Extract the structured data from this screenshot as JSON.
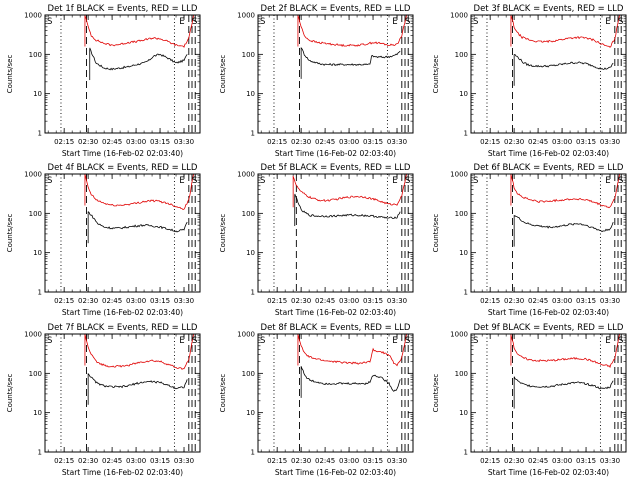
{
  "figure": {
    "x_axis_label": "Start Time (16-Feb-02 02:03:40)",
    "y_axis_label": "Counts/sec"
  },
  "colors": {
    "events": "#000000",
    "lld": "#e00000",
    "axes": "#000000",
    "background": "#ffffff"
  },
  "markers": {
    "left": "S",
    "mid": "E",
    "right": "S"
  },
  "chart_data": [
    {
      "type": "line",
      "id": "det1",
      "title": "Det 1f BLACK = Events, RED = LLD",
      "x_ticks": [
        "02:15",
        "02:30",
        "02:45",
        "03:00",
        "03:15",
        "03:30"
      ],
      "y_ticks": [
        "1",
        "10",
        "100",
        "1000"
      ],
      "yscale": "log",
      "ylim": [
        1,
        1000
      ],
      "series": [
        {
          "name": "Events",
          "color": "#000000",
          "x": [
            "02:31",
            "02:35",
            "02:40",
            "02:45",
            "02:50",
            "02:55",
            "03:00",
            "03:05",
            "03:08",
            "03:11",
            "03:15",
            "03:20",
            "03:25",
            "03:30",
            "03:32"
          ],
          "y": [
            140,
            60,
            45,
            42,
            45,
            48,
            55,
            60,
            70,
            90,
            100,
            80,
            60,
            70,
            100
          ]
        },
        {
          "name": "LLD",
          "color": "#e00000",
          "x": [
            "02:28",
            "02:30",
            "02:32",
            "02:35",
            "02:40",
            "02:45",
            "02:50",
            "02:55",
            "03:00",
            "03:05",
            "03:10",
            "03:15",
            "03:20",
            "03:25",
            "03:30",
            "03:33",
            "03:36"
          ],
          "y": [
            1000,
            500,
            300,
            230,
            190,
            170,
            180,
            200,
            210,
            230,
            260,
            250,
            210,
            170,
            160,
            250,
            1000
          ]
        }
      ],
      "dashed_lines": [
        "02:29",
        "03:33",
        "03:35",
        "03:37"
      ],
      "dotted_lines": [
        "02:13",
        "03:24"
      ]
    },
    {
      "type": "line",
      "id": "det2",
      "title": "Det 2f BLACK = Events, RED = LLD",
      "x_ticks": [
        "02:15",
        "02:30",
        "02:45",
        "03:00",
        "03:15",
        "03:30"
      ],
      "y_ticks": [
        "1",
        "10",
        "100",
        "1000"
      ],
      "yscale": "log",
      "ylim": [
        1,
        1000
      ],
      "series": [
        {
          "name": "Events",
          "color": "#000000",
          "x": [
            "02:30",
            "02:32",
            "02:35",
            "02:40",
            "02:45",
            "02:50",
            "02:55",
            "03:00",
            "03:05",
            "03:10",
            "03:13",
            "03:14",
            "03:18",
            "03:22",
            "03:27",
            "03:30",
            "03:32"
          ],
          "y": [
            150,
            100,
            70,
            60,
            55,
            55,
            55,
            55,
            55,
            55,
            55,
            90,
            85,
            85,
            90,
            100,
            120
          ]
        },
        {
          "name": "LLD",
          "color": "#e00000",
          "x": [
            "02:28",
            "02:30",
            "02:32",
            "02:35",
            "02:40",
            "02:45",
            "02:50",
            "02:55",
            "03:00",
            "03:05",
            "03:10",
            "03:15",
            "03:20",
            "03:25",
            "03:30",
            "03:33",
            "03:36"
          ],
          "y": [
            1000,
            500,
            300,
            230,
            200,
            190,
            180,
            170,
            170,
            170,
            180,
            200,
            190,
            170,
            180,
            300,
            1000
          ]
        }
      ],
      "dashed_lines": [
        "02:29",
        "03:33",
        "03:35",
        "03:37"
      ],
      "dotted_lines": [
        "02:13",
        "03:24"
      ]
    },
    {
      "type": "line",
      "id": "det3",
      "title": "Det 3f BLACK = Events, RED = LLD",
      "x_ticks": [
        "02:15",
        "02:30",
        "02:45",
        "03:00",
        "03:15",
        "03:30"
      ],
      "y_ticks": [
        "1",
        "10",
        "100",
        "1000"
      ],
      "yscale": "log",
      "ylim": [
        1,
        1000
      ],
      "series": [
        {
          "name": "Events",
          "color": "#000000",
          "x": [
            "02:30",
            "02:33",
            "02:36",
            "02:40",
            "02:45",
            "02:50",
            "02:55",
            "03:00",
            "03:05",
            "03:10",
            "03:15",
            "03:20",
            "03:25",
            "03:30",
            "03:32"
          ],
          "y": [
            100,
            80,
            60,
            52,
            50,
            50,
            52,
            56,
            60,
            62,
            58,
            50,
            42,
            45,
            60
          ]
        },
        {
          "name": "LLD",
          "color": "#e00000",
          "x": [
            "02:28",
            "02:30",
            "02:32",
            "02:35",
            "02:40",
            "02:45",
            "02:50",
            "02:55",
            "03:00",
            "03:05",
            "03:10",
            "03:15",
            "03:20",
            "03:25",
            "03:30",
            "03:33",
            "03:36"
          ],
          "y": [
            1000,
            500,
            350,
            270,
            230,
            210,
            210,
            220,
            240,
            260,
            270,
            260,
            230,
            180,
            150,
            250,
            1000
          ]
        }
      ],
      "dashed_lines": [
        "02:29",
        "03:33",
        "03:35",
        "03:37"
      ],
      "dotted_lines": [
        "02:13",
        "03:24"
      ]
    },
    {
      "type": "line",
      "id": "det4",
      "title": "Det 4f BLACK = Events, RED = LLD",
      "x_ticks": [
        "02:15",
        "02:30",
        "02:45",
        "03:00",
        "03:15",
        "03:30"
      ],
      "y_ticks": [
        "1",
        "10",
        "100",
        "1000"
      ],
      "yscale": "log",
      "ylim": [
        1,
        1000
      ],
      "series": [
        {
          "name": "Events",
          "color": "#000000",
          "x": [
            "02:30",
            "02:33",
            "02:36",
            "02:40",
            "02:45",
            "02:50",
            "02:55",
            "03:00",
            "03:05",
            "03:10",
            "03:15",
            "03:20",
            "03:25",
            "03:30",
            "03:32"
          ],
          "y": [
            110,
            80,
            55,
            45,
            42,
            42,
            45,
            48,
            50,
            48,
            45,
            40,
            35,
            38,
            60
          ]
        },
        {
          "name": "LLD",
          "color": "#e00000",
          "x": [
            "02:28",
            "02:30",
            "02:32",
            "02:35",
            "02:40",
            "02:45",
            "02:50",
            "02:55",
            "03:00",
            "03:05",
            "03:10",
            "03:15",
            "03:20",
            "03:25",
            "03:30",
            "03:33",
            "03:36"
          ],
          "y": [
            1000,
            450,
            300,
            220,
            180,
            160,
            160,
            170,
            180,
            200,
            210,
            200,
            180,
            150,
            130,
            220,
            1000
          ]
        }
      ],
      "dashed_lines": [
        "02:29",
        "03:33",
        "03:35",
        "03:37"
      ],
      "dotted_lines": [
        "02:13",
        "03:24"
      ]
    },
    {
      "type": "line",
      "id": "det5",
      "title": "Det 5f BLACK = Events, RED = LLD",
      "x_ticks": [
        "02:15",
        "02:30",
        "02:45",
        "03:00",
        "03:15",
        "03:30"
      ],
      "y_ticks": [
        "1",
        "10",
        "100",
        "1000"
      ],
      "yscale": "log",
      "ylim": [
        1,
        1000
      ],
      "series": [
        {
          "name": "Events",
          "color": "#000000",
          "x": [
            "02:26",
            "02:28",
            "02:30",
            "02:35",
            "02:40",
            "02:45",
            "02:50",
            "02:55",
            "03:00",
            "03:05",
            "03:10",
            "03:15",
            "03:20",
            "03:25",
            "03:30",
            "03:32"
          ],
          "y": [
            300,
            200,
            120,
            90,
            85,
            85,
            85,
            88,
            90,
            90,
            88,
            85,
            80,
            75,
            80,
            110
          ]
        },
        {
          "name": "LLD",
          "color": "#e00000",
          "x": [
            "02:25",
            "02:27",
            "02:30",
            "02:35",
            "02:40",
            "02:45",
            "02:50",
            "02:55",
            "03:00",
            "03:05",
            "03:10",
            "03:15",
            "03:20",
            "03:25",
            "03:30",
            "03:33",
            "03:36"
          ],
          "y": [
            900,
            500,
            350,
            260,
            220,
            210,
            220,
            240,
            260,
            270,
            260,
            230,
            200,
            170,
            170,
            280,
            1000
          ]
        }
      ],
      "dashed_lines": [
        "02:27",
        "03:33",
        "03:35",
        "03:37"
      ],
      "dotted_lines": [
        "02:13",
        "03:24"
      ]
    },
    {
      "type": "line",
      "id": "det6",
      "title": "Det 6f BLACK = Events, RED = LLD",
      "x_ticks": [
        "02:15",
        "02:30",
        "02:45",
        "03:00",
        "03:15",
        "03:30"
      ],
      "y_ticks": [
        "1",
        "10",
        "100",
        "1000"
      ],
      "yscale": "log",
      "ylim": [
        1,
        1000
      ],
      "series": [
        {
          "name": "Events",
          "color": "#000000",
          "x": [
            "02:30",
            "02:33",
            "02:36",
            "02:40",
            "02:45",
            "02:50",
            "02:55",
            "03:00",
            "03:05",
            "03:10",
            "03:15",
            "03:20",
            "03:25",
            "03:30",
            "03:32"
          ],
          "y": [
            90,
            75,
            60,
            52,
            48,
            45,
            45,
            48,
            52,
            55,
            50,
            42,
            35,
            40,
            60
          ]
        },
        {
          "name": "LLD",
          "color": "#e00000",
          "x": [
            "02:28",
            "02:30",
            "02:32",
            "02:35",
            "02:40",
            "02:45",
            "02:50",
            "02:55",
            "03:00",
            "03:05",
            "03:10",
            "03:15",
            "03:20",
            "03:25",
            "03:30",
            "03:33",
            "03:36"
          ],
          "y": [
            1000,
            450,
            330,
            260,
            220,
            200,
            200,
            210,
            220,
            230,
            230,
            220,
            190,
            160,
            140,
            240,
            1000
          ]
        }
      ],
      "dashed_lines": [
        "02:29",
        "03:33",
        "03:35",
        "03:37"
      ],
      "dotted_lines": [
        "02:13",
        "03:24"
      ]
    },
    {
      "type": "line",
      "id": "det7",
      "title": "Det 7f BLACK = Events, RED = LLD",
      "x_ticks": [
        "02:15",
        "02:30",
        "02:45",
        "03:00",
        "03:15",
        "03:30"
      ],
      "y_ticks": [
        "1",
        "10",
        "100",
        "1000"
      ],
      "yscale": "log",
      "ylim": [
        1,
        1000
      ],
      "series": [
        {
          "name": "Events",
          "color": "#000000",
          "x": [
            "02:30",
            "02:33",
            "02:36",
            "02:40",
            "02:45",
            "02:50",
            "02:55",
            "03:00",
            "03:05",
            "03:10",
            "03:15",
            "03:20",
            "03:25",
            "03:30",
            "03:32"
          ],
          "y": [
            100,
            70,
            55,
            48,
            45,
            45,
            48,
            55,
            60,
            62,
            58,
            50,
            42,
            45,
            70
          ]
        },
        {
          "name": "LLD",
          "color": "#e00000",
          "x": [
            "02:28",
            "02:30",
            "02:32",
            "02:35",
            "02:40",
            "02:45",
            "02:50",
            "02:55",
            "03:00",
            "03:05",
            "03:10",
            "03:15",
            "03:20",
            "03:25",
            "03:30",
            "03:33",
            "03:36"
          ],
          "y": [
            1000,
            450,
            300,
            200,
            160,
            150,
            150,
            160,
            180,
            200,
            210,
            200,
            170,
            140,
            130,
            220,
            1000
          ]
        }
      ],
      "dashed_lines": [
        "02:29",
        "03:33",
        "03:35",
        "03:37"
      ],
      "dotted_lines": [
        "02:13",
        "03:24"
      ]
    },
    {
      "type": "line",
      "id": "det8",
      "title": "Det 8f BLACK = Events, RED = LLD",
      "x_ticks": [
        "02:15",
        "02:30",
        "02:45",
        "03:00",
        "03:15",
        "03:30"
      ],
      "y_ticks": [
        "1",
        "10",
        "100",
        "1000"
      ],
      "yscale": "log",
      "ylim": [
        1,
        1000
      ],
      "series": [
        {
          "name": "Events",
          "color": "#000000",
          "x": [
            "02:30",
            "02:33",
            "02:36",
            "02:40",
            "02:45",
            "02:50",
            "02:55",
            "03:00",
            "03:05",
            "03:10",
            "03:13",
            "03:15",
            "03:20",
            "03:25",
            "03:28",
            "03:30",
            "03:32"
          ],
          "y": [
            150,
            80,
            65,
            60,
            55,
            55,
            55,
            55,
            55,
            55,
            60,
            90,
            80,
            55,
            35,
            40,
            70
          ]
        },
        {
          "name": "LLD",
          "color": "#e00000",
          "x": [
            "02:28",
            "02:30",
            "02:32",
            "02:35",
            "02:40",
            "02:45",
            "02:50",
            "02:55",
            "03:00",
            "03:05",
            "03:10",
            "03:13",
            "03:15",
            "03:20",
            "03:25",
            "03:28",
            "03:30",
            "03:33",
            "03:36"
          ],
          "y": [
            1000,
            500,
            330,
            260,
            230,
            210,
            200,
            190,
            185,
            180,
            185,
            200,
            400,
            350,
            300,
            180,
            160,
            250,
            1000
          ]
        }
      ],
      "dashed_lines": [
        "02:29",
        "03:33",
        "03:35",
        "03:37"
      ],
      "dotted_lines": [
        "02:13",
        "03:24"
      ]
    },
    {
      "type": "line",
      "id": "det9",
      "title": "Det 9f BLACK = Events, RED = LLD",
      "x_ticks": [
        "02:15",
        "02:30",
        "02:45",
        "03:00",
        "03:15",
        "03:30"
      ],
      "y_ticks": [
        "1",
        "10",
        "100",
        "1000"
      ],
      "yscale": "log",
      "ylim": [
        1,
        1000
      ],
      "series": [
        {
          "name": "Events",
          "color": "#000000",
          "x": [
            "02:30",
            "02:33",
            "02:36",
            "02:40",
            "02:45",
            "02:50",
            "02:55",
            "03:00",
            "03:05",
            "03:10",
            "03:15",
            "03:20",
            "03:25",
            "03:30",
            "03:32"
          ],
          "y": [
            80,
            60,
            52,
            48,
            46,
            46,
            48,
            52,
            56,
            58,
            54,
            48,
            40,
            45,
            65
          ]
        },
        {
          "name": "LLD",
          "color": "#e00000",
          "x": [
            "02:28",
            "02:30",
            "02:32",
            "02:35",
            "02:40",
            "02:45",
            "02:50",
            "02:55",
            "03:00",
            "03:05",
            "03:10",
            "03:15",
            "03:20",
            "03:25",
            "03:30",
            "03:33",
            "03:36"
          ],
          "y": [
            1000,
            450,
            320,
            250,
            220,
            210,
            210,
            215,
            225,
            235,
            240,
            230,
            200,
            165,
            150,
            240,
            1000
          ]
        }
      ],
      "dashed_lines": [
        "02:29",
        "03:33",
        "03:35",
        "03:37"
      ],
      "dotted_lines": [
        "02:13",
        "03:24"
      ]
    }
  ]
}
